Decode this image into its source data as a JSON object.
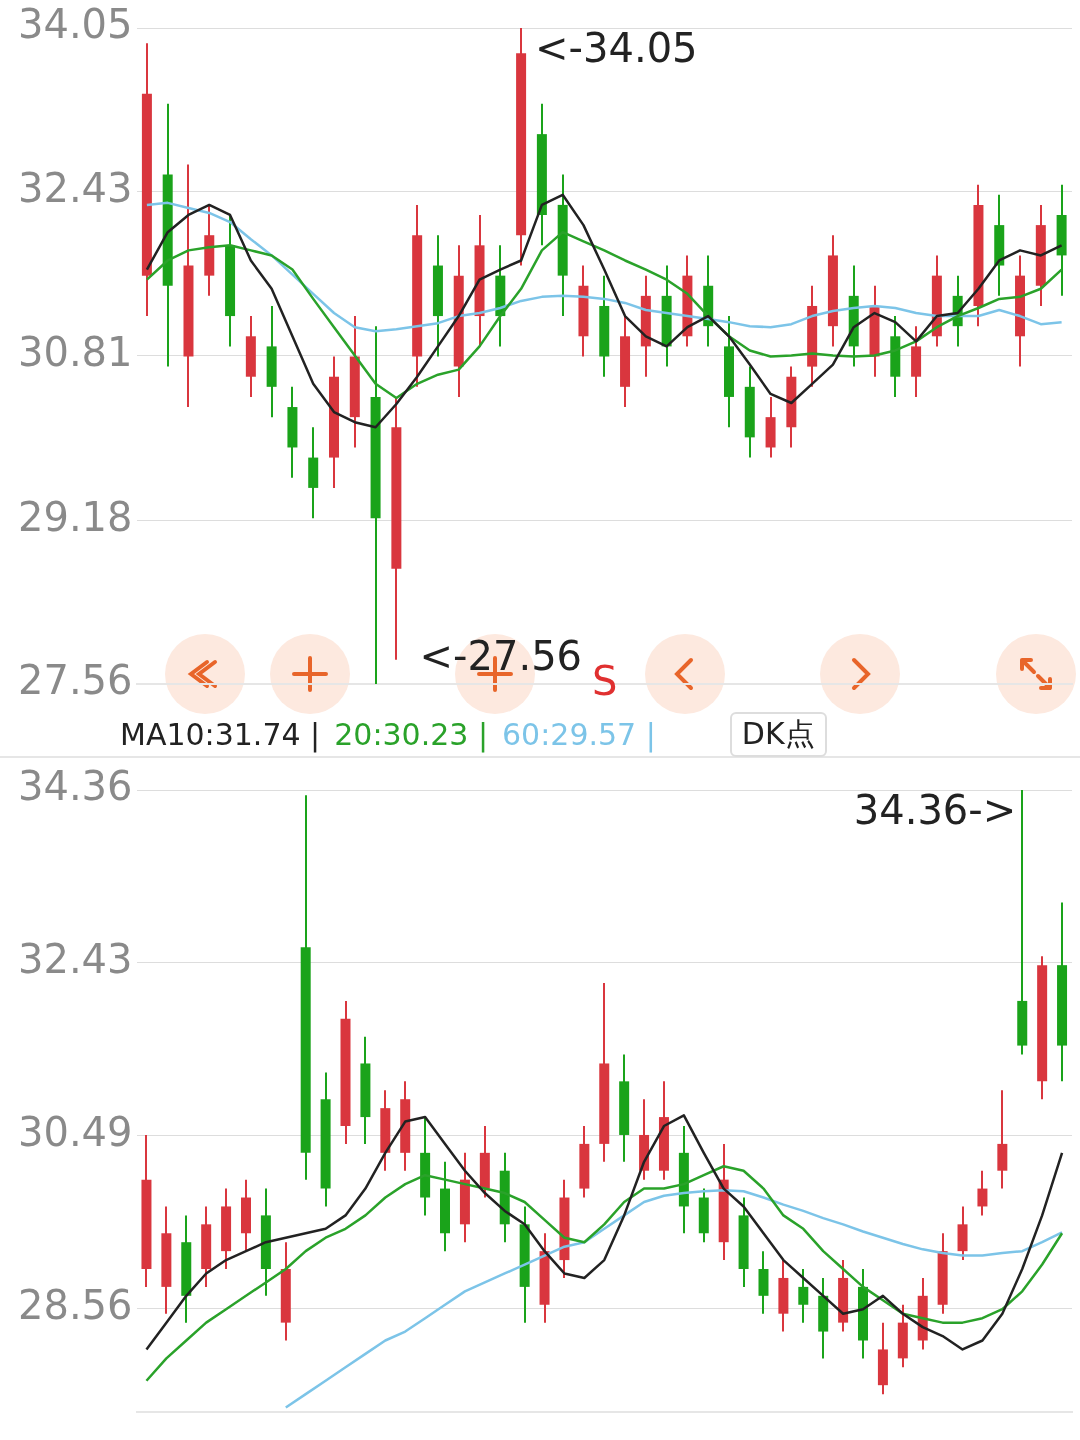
{
  "chart_data": [
    {
      "type": "candlestick",
      "categories": [
        null,
        null,
        null,
        null,
        null,
        null,
        null,
        null,
        null,
        null,
        null,
        null,
        null,
        null,
        null,
        null,
        null,
        null,
        null,
        null,
        null,
        null,
        null,
        null,
        null,
        null,
        null,
        null,
        null,
        null,
        null,
        null,
        null,
        null,
        null,
        null,
        null,
        null,
        null,
        null,
        null,
        null,
        null,
        null,
        null
      ],
      "ohlc": [
        [
          31.6,
          33.9,
          31.2,
          33.4
        ],
        [
          32.6,
          33.3,
          30.7,
          31.5
        ],
        [
          30.8,
          32.7,
          30.3,
          31.7
        ],
        [
          31.6,
          32.3,
          31.4,
          32.0
        ],
        [
          31.9,
          32.2,
          30.9,
          31.2
        ],
        [
          30.6,
          31.2,
          30.4,
          31.0
        ],
        [
          30.9,
          31.3,
          30.2,
          30.5
        ],
        [
          30.3,
          30.5,
          29.6,
          29.9
        ],
        [
          29.8,
          30.1,
          29.2,
          29.5
        ],
        [
          29.8,
          30.8,
          29.5,
          30.6
        ],
        [
          30.2,
          31.2,
          29.9,
          30.8
        ],
        [
          30.4,
          31.1,
          27.56,
          29.2
        ],
        [
          28.7,
          30.4,
          27.8,
          30.1
        ],
        [
          30.8,
          32.3,
          30.5,
          32.0
        ],
        [
          31.7,
          32.0,
          30.8,
          31.2
        ],
        [
          30.7,
          31.9,
          30.4,
          31.6
        ],
        [
          31.2,
          32.2,
          30.9,
          31.9
        ],
        [
          31.6,
          31.9,
          30.9,
          31.2
        ],
        [
          32.0,
          34.05,
          31.7,
          33.8
        ],
        [
          33.0,
          33.3,
          31.9,
          32.2
        ],
        [
          32.3,
          32.6,
          31.2,
          31.6
        ],
        [
          31.0,
          31.7,
          30.8,
          31.5
        ],
        [
          31.3,
          31.6,
          30.6,
          30.8
        ],
        [
          30.5,
          31.2,
          30.3,
          31.0
        ],
        [
          30.9,
          31.6,
          30.6,
          31.4
        ],
        [
          31.4,
          31.7,
          30.7,
          30.9
        ],
        [
          31.0,
          31.8,
          30.9,
          31.6
        ],
        [
          31.5,
          31.8,
          30.9,
          31.1
        ],
        [
          30.9,
          31.2,
          30.1,
          30.4
        ],
        [
          30.5,
          30.7,
          29.8,
          30.0
        ],
        [
          29.9,
          30.4,
          29.8,
          30.2
        ],
        [
          30.1,
          30.7,
          29.9,
          30.6
        ],
        [
          30.7,
          31.5,
          30.5,
          31.3
        ],
        [
          31.1,
          32.0,
          30.9,
          31.8
        ],
        [
          31.4,
          31.7,
          30.7,
          30.9
        ],
        [
          30.8,
          31.5,
          30.6,
          31.3
        ],
        [
          31.0,
          31.2,
          30.4,
          30.6
        ],
        [
          30.6,
          31.1,
          30.4,
          30.9
        ],
        [
          31.0,
          31.8,
          30.9,
          31.6
        ],
        [
          31.4,
          31.6,
          30.9,
          31.1
        ],
        [
          31.3,
          32.5,
          31.1,
          32.3
        ],
        [
          32.1,
          32.4,
          31.4,
          31.7
        ],
        [
          31.0,
          31.8,
          30.7,
          31.6
        ],
        [
          31.5,
          32.3,
          31.3,
          32.1
        ],
        [
          32.2,
          32.5,
          31.4,
          31.8
        ]
      ],
      "colors": [
        "#d9363e",
        "#1aa31a",
        "#d9363e",
        "#d9363e",
        "#1aa31a",
        "#d9363e",
        "#1aa31a",
        "#1aa31a",
        "#1aa31a",
        "#d9363e",
        "#d9363e",
        "#1aa31a",
        "#d9363e",
        "#d9363e",
        "#1aa31a",
        "#d9363e",
        "#d9363e",
        "#1aa31a",
        "#d9363e",
        "#1aa31a",
        "#1aa31a",
        "#d9363e",
        "#1aa31a",
        "#d9363e",
        "#d9363e",
        "#1aa31a",
        "#d9363e",
        "#1aa31a",
        "#1aa31a",
        "#1aa31a",
        "#d9363e",
        "#d9363e",
        "#d9363e",
        "#d9363e",
        "#1aa31a",
        "#d9363e",
        "#1aa31a",
        "#d9363e",
        "#d9363e",
        "#1aa31a",
        "#d9363e",
        "#1aa31a",
        "#d9363e",
        "#d9363e",
        "#1aa31a"
      ],
      "series": [
        {
          "type": "line",
          "color": "#222222",
          "values": [
            31.66,
            32.03,
            32.2,
            32.3,
            32.2,
            31.75,
            31.47,
            31.0,
            30.53,
            30.25,
            30.15,
            30.1,
            30.33,
            30.6,
            30.9,
            31.2,
            31.56,
            31.66,
            31.75,
            32.3,
            32.4,
            32.1,
            31.66,
            31.2,
            31.0,
            30.9,
            31.09,
            31.2,
            31.0,
            30.72,
            30.43,
            30.34,
            30.53,
            30.72,
            31.09,
            31.23,
            31.14,
            30.95,
            31.2,
            31.23,
            31.47,
            31.75,
            31.85,
            31.8,
            31.9
          ]
        },
        {
          "type": "line",
          "color": "#2aa22a",
          "values": [
            31.56,
            31.75,
            31.85,
            31.88,
            31.9,
            31.85,
            31.8,
            31.66,
            31.37,
            31.09,
            30.81,
            30.53,
            30.39,
            30.53,
            30.62,
            30.67,
            30.9,
            31.2,
            31.47,
            31.85,
            32.03,
            31.94,
            31.85,
            31.75,
            31.66,
            31.56,
            31.42,
            31.2,
            31.0,
            30.86,
            30.8,
            30.81,
            30.83,
            30.81,
            30.8,
            30.81,
            30.86,
            30.95,
            31.09,
            31.2,
            31.28,
            31.37,
            31.39,
            31.47,
            31.66
          ]
        },
        {
          "type": "line",
          "color": "#7cc4e8",
          "values": [
            32.3,
            32.32,
            32.27,
            32.22,
            32.13,
            31.96,
            31.8,
            31.61,
            31.42,
            31.23,
            31.09,
            31.05,
            31.07,
            31.1,
            31.13,
            31.2,
            31.23,
            31.28,
            31.35,
            31.39,
            31.4,
            31.39,
            31.37,
            31.33,
            31.26,
            31.23,
            31.2,
            31.17,
            31.14,
            31.1,
            31.09,
            31.12,
            31.2,
            31.25,
            31.28,
            31.3,
            31.28,
            31.23,
            31.2,
            31.2,
            31.2,
            31.26,
            31.2,
            31.12,
            31.14
          ]
        }
      ],
      "ylim": [
        27.56,
        34.05
      ],
      "yticks": [
        34.05,
        32.43,
        30.81,
        29.18,
        27.56
      ],
      "grid": "y",
      "tick_labels": "y",
      "legend": false,
      "annotations": [
        "<-34.05",
        "<-27.56",
        "S"
      ]
    },
    {
      "type": "candlestick",
      "categories": [
        null,
        null,
        null,
        null,
        null,
        null,
        null,
        null,
        null,
        null,
        null,
        null,
        null,
        null,
        null,
        null,
        null,
        null,
        null,
        null,
        null,
        null,
        null,
        null,
        null,
        null,
        null,
        null,
        null,
        null,
        null,
        null,
        null,
        null,
        null,
        null,
        null,
        null,
        null,
        null,
        null,
        null,
        null,
        null,
        null,
        null,
        null
      ],
      "ohlc": [
        [
          29.0,
          30.5,
          28.8,
          30.0
        ],
        [
          28.8,
          29.7,
          28.5,
          29.4
        ],
        [
          29.3,
          29.6,
          28.4,
          28.7
        ],
        [
          29.0,
          29.7,
          28.8,
          29.5
        ],
        [
          29.2,
          29.9,
          29.0,
          29.7
        ],
        [
          29.4,
          30.0,
          29.2,
          29.8
        ],
        [
          29.6,
          29.9,
          28.7,
          29.0
        ],
        [
          28.4,
          29.3,
          28.2,
          29.0
        ],
        [
          32.6,
          34.3,
          30.0,
          30.3
        ],
        [
          30.9,
          31.2,
          29.7,
          29.9
        ],
        [
          30.6,
          32.0,
          30.4,
          31.8
        ],
        [
          31.3,
          31.6,
          30.4,
          30.7
        ],
        [
          30.3,
          31.0,
          30.1,
          30.8
        ],
        [
          30.3,
          31.1,
          30.1,
          30.9
        ],
        [
          30.3,
          30.7,
          29.6,
          29.8
        ],
        [
          29.9,
          30.2,
          29.2,
          29.4
        ],
        [
          29.5,
          30.3,
          29.3,
          30.0
        ],
        [
          29.9,
          30.6,
          29.8,
          30.3
        ],
        [
          30.1,
          30.3,
          29.3,
          29.5
        ],
        [
          29.5,
          29.7,
          28.4,
          28.8
        ],
        [
          28.6,
          29.4,
          28.4,
          29.2
        ],
        [
          29.1,
          30.0,
          28.9,
          29.8
        ],
        [
          29.9,
          30.6,
          29.8,
          30.4
        ],
        [
          30.4,
          32.2,
          30.2,
          31.3
        ],
        [
          31.1,
          31.4,
          30.2,
          30.5
        ],
        [
          30.1,
          30.9,
          30.0,
          30.5
        ],
        [
          30.1,
          31.1,
          30.0,
          30.7
        ],
        [
          30.3,
          30.6,
          29.4,
          29.7
        ],
        [
          29.8,
          29.9,
          29.3,
          29.4
        ],
        [
          29.3,
          30.4,
          29.1,
          30.0
        ],
        [
          29.6,
          29.8,
          28.8,
          29.0
        ],
        [
          29.0,
          29.2,
          28.5,
          28.7
        ],
        [
          28.5,
          29.1,
          28.3,
          28.9
        ],
        [
          28.8,
          29.0,
          28.4,
          28.6
        ],
        [
          28.7,
          28.9,
          28.0,
          28.3
        ],
        [
          28.4,
          29.1,
          28.3,
          28.9
        ],
        [
          28.8,
          29.0,
          28.0,
          28.2
        ],
        [
          27.7,
          28.4,
          27.6,
          28.1
        ],
        [
          28.0,
          28.6,
          27.9,
          28.4
        ],
        [
          28.2,
          28.9,
          28.1,
          28.7
        ],
        [
          28.6,
          29.4,
          28.5,
          29.2
        ],
        [
          29.2,
          29.7,
          29.1,
          29.5
        ],
        [
          29.7,
          30.1,
          29.6,
          29.9
        ],
        [
          30.1,
          31.0,
          29.9,
          30.4
        ],
        [
          32.0,
          34.36,
          31.4,
          31.5
        ],
        [
          31.1,
          32.5,
          30.9,
          32.4
        ],
        [
          32.4,
          33.1,
          31.1,
          31.5
        ]
      ],
      "colors": [
        "#d9363e",
        "#d9363e",
        "#1aa31a",
        "#d9363e",
        "#d9363e",
        "#d9363e",
        "#1aa31a",
        "#d9363e",
        "#1aa31a",
        "#1aa31a",
        "#d9363e",
        "#1aa31a",
        "#d9363e",
        "#d9363e",
        "#1aa31a",
        "#1aa31a",
        "#d9363e",
        "#d9363e",
        "#1aa31a",
        "#1aa31a",
        "#d9363e",
        "#d9363e",
        "#d9363e",
        "#d9363e",
        "#1aa31a",
        "#d9363e",
        "#d9363e",
        "#1aa31a",
        "#1aa31a",
        "#d9363e",
        "#1aa31a",
        "#1aa31a",
        "#d9363e",
        "#1aa31a",
        "#1aa31a",
        "#d9363e",
        "#1aa31a",
        "#d9363e",
        "#d9363e",
        "#d9363e",
        "#d9363e",
        "#d9363e",
        "#d9363e",
        "#d9363e",
        "#1aa31a",
        "#d9363e",
        "#1aa31a"
      ],
      "series": [
        {
          "type": "line",
          "color": "#222222",
          "values": [
            28.1,
            28.4,
            28.7,
            28.95,
            29.1,
            29.2,
            29.3,
            29.35,
            29.4,
            29.45,
            29.6,
            29.9,
            30.3,
            30.65,
            30.7,
            30.4,
            30.1,
            29.85,
            29.65,
            29.5,
            29.2,
            28.95,
            28.9,
            29.1,
            29.6,
            30.2,
            30.6,
            30.72,
            30.3,
            29.9,
            29.7,
            29.4,
            29.1,
            28.9,
            28.7,
            28.5,
            28.55,
            28.7,
            28.5,
            28.35,
            28.25,
            28.1,
            28.2,
            28.5,
            29.0,
            29.6,
            30.3
          ]
        },
        {
          "type": "line",
          "color": "#2aa22a",
          "values": [
            27.75,
            28.0,
            28.2,
            28.4,
            28.55,
            28.7,
            28.85,
            29.0,
            29.2,
            29.35,
            29.45,
            29.6,
            29.8,
            29.95,
            30.05,
            30.0,
            29.95,
            29.9,
            29.85,
            29.75,
            29.55,
            29.35,
            29.3,
            29.5,
            29.75,
            29.9,
            29.9,
            29.95,
            30.05,
            30.15,
            30.1,
            29.9,
            29.6,
            29.45,
            29.2,
            29.0,
            28.8,
            28.65,
            28.5,
            28.45,
            28.4,
            28.4,
            28.45,
            28.55,
            28.75,
            29.05,
            29.4
          ]
        },
        {
          "type": "line",
          "color": "#7cc4e8",
          "values": [
            null,
            null,
            null,
            null,
            null,
            null,
            null,
            27.45,
            27.6,
            27.75,
            27.9,
            28.05,
            28.2,
            28.3,
            28.45,
            28.6,
            28.75,
            28.85,
            28.95,
            29.05,
            29.15,
            29.25,
            29.3,
            29.45,
            29.6,
            29.75,
            29.82,
            29.85,
            29.87,
            29.88,
            29.87,
            29.8,
            29.72,
            29.65,
            29.57,
            29.5,
            29.42,
            29.35,
            29.28,
            29.22,
            29.18,
            29.15,
            29.15,
            29.18,
            29.2,
            29.3,
            29.41
          ]
        }
      ],
      "ylim": [
        27.4,
        34.36
      ],
      "yticks": [
        34.36,
        32.43,
        30.49,
        28.56
      ],
      "grid": "y",
      "tick_labels": "y",
      "legend": false,
      "annotations": [
        "34.36->",
        "MA10:31.74 |",
        "20:30.23 |",
        "60:29.57 |",
        "DK点"
      ]
    }
  ]
}
